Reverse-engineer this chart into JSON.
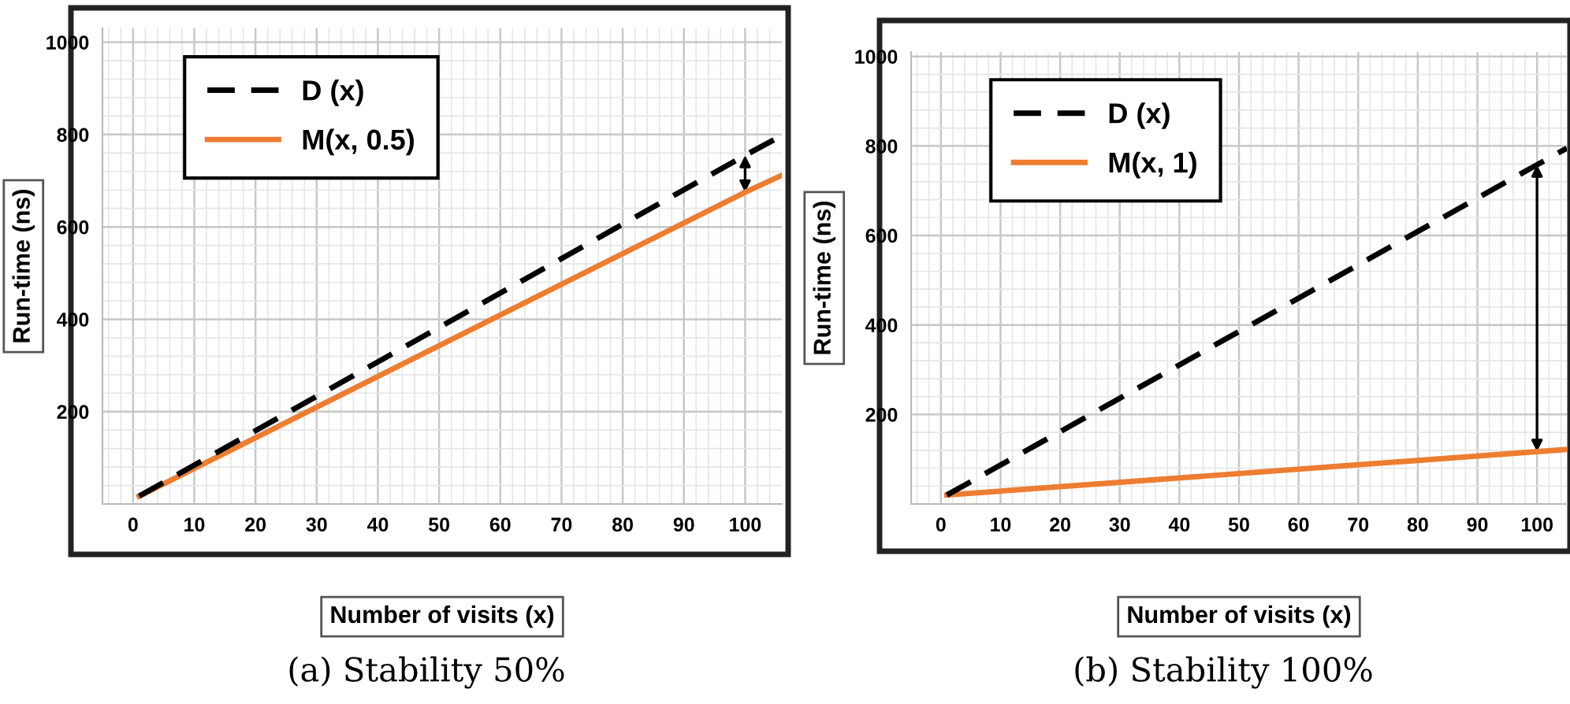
{
  "chart_data": [
    {
      "type": "line",
      "xlabel": "Number of visits (x)",
      "ylabel": "Run-time (ns)",
      "x": [
        1,
        100,
        106
      ],
      "xlim": [
        -5,
        106
      ],
      "xticks": [
        0,
        10,
        20,
        30,
        40,
        50,
        60,
        70,
        80,
        90,
        100
      ],
      "ylim": [
        0,
        1030
      ],
      "yticks": [
        200,
        400,
        600,
        800,
        1000
      ],
      "grid": true,
      "legend": "top left",
      "series": [
        {
          "name": "D (x)",
          "color": "#000000",
          "line_style": "dashed",
          "values": [
            17,
            755,
            798
          ]
        },
        {
          "name": "M(x, 0.5)",
          "color": "#ed7d31",
          "line_style": "solid",
          "values": [
            17,
            675,
            712
          ]
        }
      ],
      "annotations": [
        "(a) Stability 50%"
      ]
    },
    {
      "type": "line",
      "xlabel": "Number of visits (x)",
      "ylabel": "Run-time (ns)",
      "x": [
        1,
        100,
        105
      ],
      "xlim": [
        -5,
        105
      ],
      "xticks": [
        0,
        10,
        20,
        30,
        40,
        50,
        60,
        70,
        80,
        90,
        100
      ],
      "ylim": [
        0,
        1010
      ],
      "yticks": [
        200,
        400,
        600,
        800,
        1000
      ],
      "grid": true,
      "legend": "top left",
      "series": [
        {
          "name": "D (x)",
          "color": "#000000",
          "line_style": "dashed",
          "values": [
            20,
            758,
            795
          ]
        },
        {
          "name": "M(x, 1)",
          "color": "#ed7d31",
          "line_style": "solid",
          "values": [
            20,
            117,
            122
          ]
        }
      ],
      "annotations": [
        "(b) Stability 100%"
      ]
    }
  ]
}
